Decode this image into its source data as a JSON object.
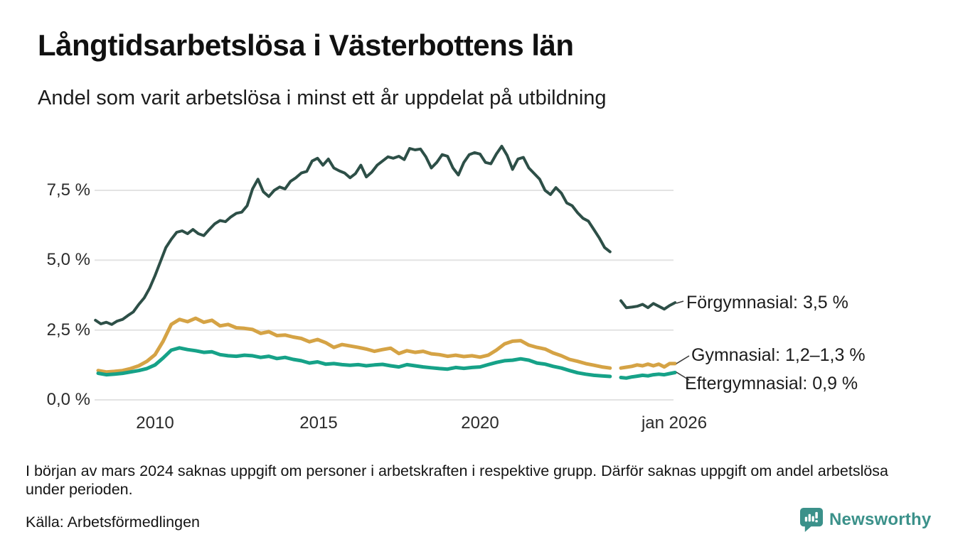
{
  "page": {
    "title": "Långtidsarbetslösa i Västerbottens län",
    "subtitle": "Andel som varit arbetslösa i minst ett år uppdelat på utbildning",
    "note": "I början av mars 2024 saknas uppgift om personer i arbetskraften i respektive grupp. Därför saknas uppgift om andel arbetslösa under perioden.",
    "source": "Källa: Arbetsförmedlingen",
    "brand": {
      "name": "Newsworthy",
      "color": "#3b918a",
      "icon": "bar-chart-speech-bubble-icon"
    }
  },
  "chart_data": {
    "type": "line",
    "title": "Långtidsarbetslösa i Västerbottens län",
    "subtitle": "Andel som varit arbetslösa i minst ett år uppdelat på utbildning",
    "unit": "%",
    "xlim": [
      2008.1,
      2026.0
    ],
    "ylim": [
      0,
      9.5
    ],
    "grid": "horizontal-only",
    "legend_position": "end-of-line-labels-right",
    "gridline_color": "#e3e3e3",
    "y_ticks": [
      {
        "value": 7.5,
        "label": "7,5 %"
      },
      {
        "value": 5.0,
        "label": "5,0 %"
      },
      {
        "value": 2.5,
        "label": "2,5 %"
      },
      {
        "value": 0.0,
        "label": "0,0 %"
      }
    ],
    "x_ticks": [
      {
        "value": 2010,
        "label": "2010"
      },
      {
        "value": 2015,
        "label": "2015"
      },
      {
        "value": 2020,
        "label": "2020"
      },
      {
        "value": 2026,
        "label": "jan 2026"
      }
    ],
    "series": [
      {
        "name": "Förgymnasial",
        "color": "#2d4f47",
        "width": 4,
        "end_label": "Förgymnasial: 3,5 %",
        "end_value": 3.5,
        "segments": [
          {
            "start": 2008.1667,
            "step": 0.166667,
            "values": [
              2.85,
              2.72,
              2.78,
              2.7,
              2.82,
              2.88,
              3.02,
              3.15,
              3.42,
              3.65,
              4.0,
              4.45,
              4.95,
              5.45,
              5.75,
              6.0,
              6.05,
              5.95,
              6.1,
              5.95,
              5.88,
              6.1,
              6.3,
              6.42,
              6.38,
              6.55,
              6.68,
              6.72,
              6.95,
              7.55,
              7.9,
              7.45,
              7.28,
              7.5,
              7.62,
              7.55,
              7.82,
              7.95,
              8.12,
              8.18,
              8.55,
              8.65,
              8.4,
              8.62,
              8.3,
              8.2,
              8.12,
              7.95,
              8.1,
              8.4,
              7.98,
              8.15,
              8.4,
              8.55,
              8.7,
              8.65,
              8.72,
              8.6,
              9.0,
              8.95,
              8.98,
              8.7,
              8.3,
              8.5,
              8.78,
              8.72,
              8.3,
              8.05,
              8.5,
              8.78,
              8.85,
              8.8,
              8.5,
              8.45,
              8.8,
              9.08,
              8.75,
              8.25,
              8.62,
              8.68,
              8.3,
              8.1,
              7.9,
              7.5,
              7.35,
              7.6,
              7.4,
              7.05,
              6.95,
              6.7,
              6.5,
              6.4,
              6.1,
              5.8,
              5.45,
              5.3
            ]
          },
          {
            "start": 2024.3333,
            "step": 0.166667,
            "values": [
              3.55,
              3.3,
              3.32,
              3.35,
              3.42,
              3.3,
              3.45,
              3.35,
              3.25,
              3.38,
              3.48
            ]
          }
        ]
      },
      {
        "name": "Gymnasial",
        "color": "#d5a345",
        "width": 5,
        "end_label": "Gymnasial: 1,2–1,3 %",
        "end_value": 1.3,
        "segments": [
          {
            "start": 2008.25,
            "step": 0.25,
            "values": [
              1.05,
              1.0,
              1.02,
              1.05,
              1.12,
              1.22,
              1.38,
              1.62,
              2.1,
              2.7,
              2.88,
              2.8,
              2.92,
              2.78,
              2.85,
              2.65,
              2.7,
              2.58,
              2.56,
              2.52,
              2.38,
              2.44,
              2.3,
              2.32,
              2.25,
              2.2,
              2.08,
              2.16,
              2.05,
              1.88,
              1.98,
              1.93,
              1.88,
              1.82,
              1.74,
              1.8,
              1.85,
              1.66,
              1.76,
              1.7,
              1.74,
              1.65,
              1.62,
              1.56,
              1.6,
              1.55,
              1.58,
              1.53,
              1.6,
              1.78,
              2.0,
              2.1,
              2.12,
              1.96,
              1.88,
              1.82,
              1.68,
              1.58,
              1.45,
              1.38,
              1.3,
              1.24,
              1.18,
              1.14
            ]
          },
          {
            "start": 2024.3333,
            "step": 0.166667,
            "values": [
              1.14,
              1.17,
              1.2,
              1.25,
              1.22,
              1.28,
              1.22,
              1.28,
              1.18,
              1.3,
              1.3
            ]
          }
        ]
      },
      {
        "name": "Eftergymnasial",
        "color": "#16a288",
        "width": 5,
        "end_label": "Eftergymnasial: 0,9 %",
        "end_value": 0.9,
        "segments": [
          {
            "start": 2008.25,
            "step": 0.25,
            "values": [
              0.95,
              0.9,
              0.92,
              0.95,
              1.0,
              1.05,
              1.12,
              1.25,
              1.5,
              1.78,
              1.86,
              1.8,
              1.76,
              1.7,
              1.72,
              1.62,
              1.58,
              1.56,
              1.6,
              1.58,
              1.52,
              1.56,
              1.48,
              1.52,
              1.45,
              1.4,
              1.32,
              1.36,
              1.28,
              1.3,
              1.26,
              1.24,
              1.26,
              1.22,
              1.25,
              1.27,
              1.22,
              1.18,
              1.26,
              1.22,
              1.18,
              1.15,
              1.12,
              1.1,
              1.16,
              1.13,
              1.16,
              1.18,
              1.26,
              1.34,
              1.4,
              1.42,
              1.47,
              1.42,
              1.32,
              1.28,
              1.2,
              1.14,
              1.05,
              0.97,
              0.92,
              0.88,
              0.86,
              0.84
            ]
          },
          {
            "start": 2024.3333,
            "step": 0.166667,
            "values": [
              0.8,
              0.78,
              0.82,
              0.85,
              0.88,
              0.86,
              0.9,
              0.92,
              0.9,
              0.94,
              0.98
            ]
          }
        ]
      }
    ]
  }
}
